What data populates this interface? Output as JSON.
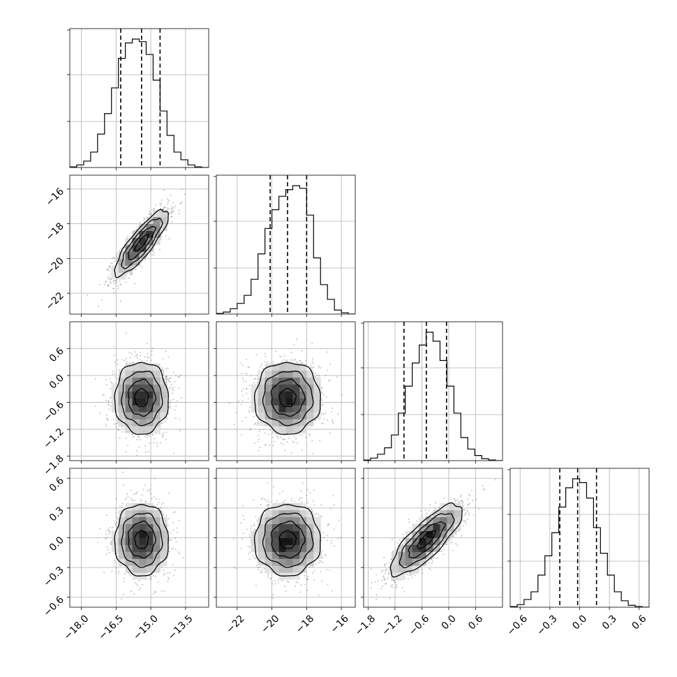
{
  "chart_data": {
    "type": "corner",
    "parameters": [
      {
        "xlim": [
          -18.5,
          -12.5
        ],
        "ticks": [
          -18.0,
          -16.5,
          -15.0,
          -13.5
        ],
        "tick_labels": [
          "−18.0",
          "−16.5",
          "−15.0",
          "−13.5"
        ],
        "quantiles": [
          -16.3,
          -15.4,
          -14.6
        ],
        "histogram": {
          "edges": [
            -18.5,
            -18.2,
            -17.9,
            -17.6,
            -17.3,
            -17.0,
            -16.7,
            -16.4,
            -16.1,
            -15.8,
            -15.5,
            -15.2,
            -14.9,
            -14.6,
            -14.3,
            -14.0,
            -13.7,
            -13.4,
            -13.1,
            -12.8,
            -12.5
          ],
          "counts": [
            0.5,
            2,
            5,
            12,
            26,
            42,
            62,
            85,
            97,
            100,
            98,
            88,
            68,
            44,
            25,
            12,
            6,
            2,
            0.5,
            0
          ]
        }
      },
      {
        "xlim": [
          -23.2,
          -15.2
        ],
        "ylim": [
          -23.2,
          -15.2
        ],
        "ticks": [
          -22,
          -20,
          -18,
          -16
        ],
        "tick_labels": [
          "−22",
          "−20",
          "−18",
          "−16"
        ],
        "quantiles": [
          -20.1,
          -19.1,
          -18.0
        ],
        "histogram": {
          "edges": [
            -23.2,
            -22.8,
            -22.4,
            -22.0,
            -21.6,
            -21.2,
            -20.8,
            -20.4,
            -20.0,
            -19.6,
            -19.2,
            -18.8,
            -18.4,
            -18.0,
            -17.6,
            -17.2,
            -16.8,
            -16.4,
            -16.0,
            -15.6,
            -15.2
          ],
          "counts": [
            0.5,
            1.5,
            4,
            8,
            14,
            26,
            45,
            64,
            78,
            88,
            93,
            96,
            94,
            74,
            42,
            22,
            11,
            3,
            1,
            0
          ]
        }
      },
      {
        "xlim": [
          -1.9,
          1.2
        ],
        "ylim": [
          -1.9,
          1.2
        ],
        "ticks": [
          -1.8,
          -1.2,
          -0.6,
          0.0,
          0.6
        ],
        "tick_labels": [
          "−1.8",
          "−1.2",
          "−0.6",
          "0.0",
          "0.6"
        ],
        "quantiles": [
          -1.0,
          -0.5,
          -0.05
        ],
        "histogram": {
          "edges": [
            -1.9,
            -1.745,
            -1.59,
            -1.435,
            -1.28,
            -1.125,
            -0.97,
            -0.815,
            -0.66,
            -0.505,
            -0.35,
            -0.195,
            -0.04,
            0.115,
            0.27,
            0.425,
            0.58,
            0.735,
            0.89,
            1.045,
            1.2
          ],
          "counts": [
            0.5,
            2,
            5,
            10,
            20,
            37,
            58,
            76,
            90,
            100,
            93,
            78,
            58,
            37,
            18,
            9,
            4,
            1.5,
            0.5,
            0
          ]
        }
      },
      {
        "xlim": [
          -0.7,
          0.7
        ],
        "ylim": [
          -0.7,
          0.7
        ],
        "ticks": [
          -0.6,
          -0.3,
          0.0,
          0.3,
          0.6
        ],
        "tick_labels": [
          "−0.6",
          "−0.3",
          "0.0",
          "0.3",
          "0.6"
        ],
        "quantiles": [
          -0.2,
          -0.02,
          0.17
        ],
        "histogram": {
          "edges": [
            -0.7,
            -0.63,
            -0.56,
            -0.49,
            -0.42,
            -0.35,
            -0.28,
            -0.21,
            -0.14,
            -0.07,
            0.0,
            0.07,
            0.14,
            0.21,
            0.28,
            0.35,
            0.42,
            0.49,
            0.56,
            0.63,
            0.7
          ],
          "counts": [
            0.5,
            2,
            6,
            12,
            25,
            40,
            58,
            78,
            93,
            100,
            97,
            85,
            62,
            42,
            25,
            12,
            5,
            1.5,
            0.5,
            0
          ]
        }
      }
    ],
    "pairs": [
      {
        "x_param": 0,
        "y_param": 1,
        "mean": [
          -15.4,
          -19.1
        ],
        "sd": [
          0.58,
          0.95
        ],
        "rho": 0.85
      },
      {
        "x_param": 0,
        "y_param": 2,
        "mean": [
          -15.4,
          -0.5
        ],
        "sd": [
          0.58,
          0.4
        ],
        "rho": 0.0
      },
      {
        "x_param": 1,
        "y_param": 2,
        "mean": [
          -19.1,
          -0.5
        ],
        "sd": [
          0.95,
          0.4
        ],
        "rho": 0.0
      },
      {
        "x_param": 0,
        "y_param": 3,
        "mean": [
          -15.4,
          -0.02
        ],
        "sd": [
          0.58,
          0.18
        ],
        "rho": 0.0
      },
      {
        "x_param": 1,
        "y_param": 3,
        "mean": [
          -19.1,
          -0.02
        ],
        "sd": [
          0.95,
          0.18
        ],
        "rho": 0.0
      },
      {
        "x_param": 2,
        "y_param": 3,
        "mean": [
          -0.5,
          -0.02
        ],
        "sd": [
          0.4,
          0.18
        ],
        "rho": 0.8
      }
    ],
    "contour_levels_sigma": [
      0.5,
      1.0,
      1.5,
      2.0
    ],
    "scatter_points_per_panel": 1600,
    "grid": true,
    "colors": {
      "contour": "#000000",
      "density": "#000000",
      "scatter": "#555555",
      "grid": "#b0b0b0"
    },
    "title": "",
    "xlabel": "",
    "ylabel": ""
  }
}
